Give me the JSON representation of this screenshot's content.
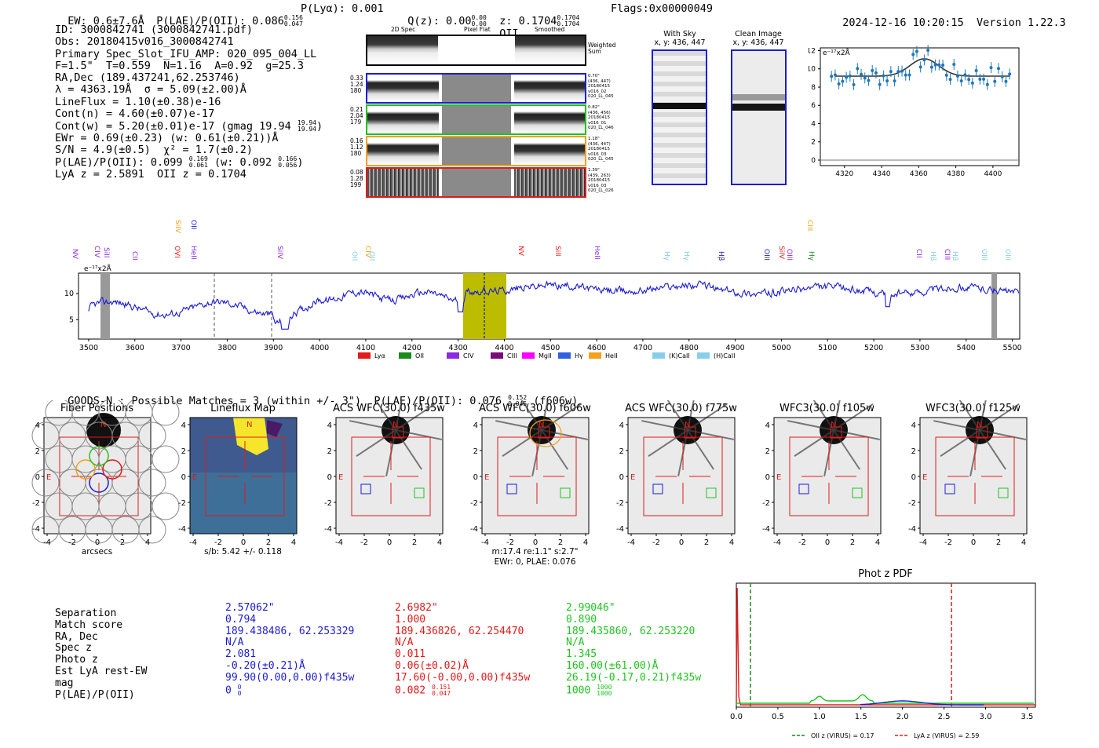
{
  "header": {
    "ew": "EW: 0.6±7.6Å",
    "plae_label": "P(LAE)/P(OII): 0.086",
    "plae_hi": "0.156",
    "plae_lo": "0.047",
    "plya": "P(Lyα): 0.001",
    "qz_label": "Q(z): 0.00",
    "qz_hi": "0.00",
    "qz_lo": "0.00",
    "z_label": "z: 0.1704",
    "z_hi": "0.1704",
    "z_lo": "0.1704",
    "z_line": "OII",
    "flags": "Flags:0x00000049",
    "datetime": "2024-12-16 10:20:15",
    "version": "Version 1.22.3"
  },
  "info": {
    "l1": "ID: 3000842741 (3000842741.pdf)",
    "l2": "Obs: 20180415v016_3000842741",
    "l3": "Primary Spec_Slot_IFU_AMP: 020_095_004_LL",
    "l4": "F=1.5\"  T=0.559  N=1.16  A=0.92  g=25.3",
    "l5": "RA,Dec (189.437241,62.253746)",
    "l6": "λ = 4363.19Å  σ = 5.09(±2.00)Å",
    "l7": "LineFlux = 1.10(±0.38)e-16",
    "l8": "Cont(n) = 4.60(±0.07)e-17",
    "l9_label": "Cont(w) = 5.20(±0.01)e-17 (gmag 19.94",
    "l9_hi": "19.94",
    "l9_lo": "19.94",
    "l9_end": ")",
    "l10": "EWr = 0.69(±0.23) (w: 0.61(±0.21))Å",
    "l11": "S/N = 4.9(±0.5)  χ² = 1.7(±0.2)",
    "l12_a": "P(LAE)/P(OII): 0.099",
    "l12_hi1": "0.169",
    "l12_lo1": "0.061",
    "l12_b": "(w: 0.092",
    "l12_hi2": "0.166",
    "l12_lo2": "0.056",
    "l12_c": ")",
    "l13": "LyA z = 2.5891  OII z = 0.1704"
  },
  "spec2d": {
    "col_2d": "2D Spec",
    "col_flat": "Pixel Flat",
    "col_smooth": "Smoothed",
    "weighted": "Weighted",
    "sum": "Sum",
    "rows": [
      {
        "left": [
          "0.33",
          "1.24",
          "180"
        ],
        "right": [
          "0.70\"",
          "(436, 447)",
          "20180415",
          "v016_02",
          "020_LL_045"
        ],
        "color": "#1b1bd6"
      },
      {
        "left": [
          "0.21",
          "2.04",
          "179"
        ],
        "right": [
          "0.82\"",
          "(436, 456)",
          "20180415",
          "v016_01",
          "020_LL_046"
        ],
        "color": "#1fc41f"
      },
      {
        "left": [
          "0.16",
          "1.12",
          "180"
        ],
        "right": [
          "1.18\"",
          "(436, 447)",
          "20180415",
          "v016_03",
          "020_LL_045"
        ],
        "color": "#f5a11b"
      },
      {
        "left": [
          "0.08",
          "1.28",
          "199"
        ],
        "right": [
          "1.39\"",
          "(439, 263)",
          "20180415",
          "v016_03",
          "020_LL_026"
        ],
        "color": "#e31a1a"
      }
    ]
  },
  "cutouts": {
    "sky_title": "With Sky",
    "sky_xy": "x, y: 436, 447",
    "clean_title": "Clean Image",
    "clean_xy": "x, y: 436, 447"
  },
  "fit_plot": {
    "exp_label": "e⁻¹⁷x2Å",
    "yticks": [
      "0",
      "2",
      "4",
      "6",
      "8",
      "10",
      "12"
    ],
    "xticks": [
      "4320",
      "4340",
      "4360",
      "4380",
      "4400"
    ]
  },
  "full_spectrum": {
    "exp_label": "e⁻¹⁷x2Å",
    "yticks": [
      "5",
      "10"
    ],
    "xticks": [
      "3500",
      "3600",
      "3700",
      "3800",
      "3900",
      "4000",
      "4100",
      "4200",
      "4300",
      "4400",
      "4500",
      "4600",
      "4700",
      "4800",
      "4900",
      "5000",
      "5100",
      "5200",
      "5300",
      "5400",
      "5500"
    ],
    "line_labels": [
      {
        "t": "NV",
        "c": "#8a2be2"
      },
      {
        "t": "CIV",
        "c": "#8a2be2"
      },
      {
        "t": "SiII",
        "c": "#8a2be2"
      },
      {
        "t": "CII",
        "c": "#8a2be2"
      },
      {
        "t": "OVI",
        "c": "#e31a1a"
      },
      {
        "t": "SiIV",
        "c": "#f5a11b"
      },
      {
        "t": "HeII",
        "c": "#8a2be2"
      },
      {
        "t": "OII",
        "c": "#1b1bd6"
      },
      {
        "t": "SiIV",
        "c": "#8a2be2"
      },
      {
        "t": "OII",
        "c": "#87ceeb"
      },
      {
        "t": "CIV",
        "c": "#f5a11b"
      },
      {
        "t": "OII",
        "c": "#87ceeb"
      },
      {
        "t": "NV",
        "c": "#e31a1a"
      },
      {
        "t": "SiII",
        "c": "#e31a1a"
      },
      {
        "t": "HeII",
        "c": "#8a2be2"
      },
      {
        "t": "Hγ",
        "c": "#87ceeb"
      },
      {
        "t": "Hγ",
        "c": "#87ceeb"
      },
      {
        "t": "Hβ",
        "c": "#1b1bd6"
      },
      {
        "t": "OIII",
        "c": "#1b1bd6"
      },
      {
        "t": "SiIV",
        "c": "#e31a1a"
      },
      {
        "t": "OIII",
        "c": "#8a2be2"
      },
      {
        "t": "Hγ",
        "c": "#228b22"
      },
      {
        "t": "CIII",
        "c": "#f5a11b"
      },
      {
        "t": "CII",
        "c": "#8a2be2"
      },
      {
        "t": "Hβ",
        "c": "#87ceeb"
      },
      {
        "t": "CIII",
        "c": "#8a2be2"
      },
      {
        "t": "Hβ",
        "c": "#87ceeb"
      },
      {
        "t": "OIII",
        "c": "#87ceeb"
      },
      {
        "t": "OIII",
        "c": "#87ceeb"
      }
    ],
    "legend": [
      {
        "t": "Lyα",
        "c": "#e31a1a"
      },
      {
        "t": "OII",
        "c": "#1a8a1a"
      },
      {
        "t": "CIV",
        "c": "#8a2be2"
      },
      {
        "t": "CIII",
        "c": "#7a0a7a"
      },
      {
        "t": "MgII",
        "c": "#ff00ff"
      },
      {
        "t": "Hγ",
        "c": "#3060e0"
      },
      {
        "t": "HeII",
        "c": "#f5a11b"
      },
      {
        "t": "(K)CaII",
        "c": "#87ceeb"
      },
      {
        "t": "(H)CaII",
        "c": "#87ceeb"
      }
    ]
  },
  "goods": {
    "label": "GOODS-N : Possible Matches = 3 (within +/- 3\")  P(LAE)/P(OII): 0.076",
    "hi": "0.152",
    "lo": "0.045",
    "end": "(f606w)"
  },
  "thumbs": [
    {
      "title": "Fiber Positions",
      "caption": "arcsecs"
    },
    {
      "title": "Lineflux Map",
      "caption": "s/b: 5.42 +/- 0.118"
    },
    {
      "title": "ACS WFC(30.0) f435w",
      "caption": ""
    },
    {
      "title": "ACS WFC(30.0) f606w",
      "caption": "m:17.4  re:1.1\"  s:2.7\"",
      "caption2": "EWr: 0, PLAE: 0.076"
    },
    {
      "title": "ACS WFC(30.0) f775w",
      "caption": ""
    },
    {
      "title": "WFC3(30.0) f105w",
      "caption": ""
    },
    {
      "title": "WFC3(30.0) f125w",
      "caption": ""
    }
  ],
  "thumb_ticks": {
    "x": [
      "-4",
      "-2",
      "0",
      "2",
      "4"
    ],
    "y": [
      "4",
      "2",
      "0",
      "-2",
      "-4"
    ],
    "n": "N",
    "e": "E"
  },
  "table": {
    "labels": [
      "Separation",
      "Match score",
      "RA, Dec",
      "Spec z",
      "Photo z",
      "Est LyA rest-EW",
      "mag",
      "P(LAE)/P(OII)"
    ],
    "cols": [
      {
        "color": "#1b1bd6",
        "vals": [
          "2.57062\"",
          "0.794",
          "189.438486, 62.253329",
          "N/A",
          "2.081",
          "-0.20(±0.21)Å",
          "99.90(0.00,0.00)f435w"
        ],
        "plae": "0",
        "hi": "0",
        "lo": "0"
      },
      {
        "color": "#e31a1a",
        "vals": [
          "2.6982\"",
          "1.000",
          "189.436826, 62.254470",
          "N/A",
          "0.011",
          "0.06(±0.02)Å",
          "17.60(-0.00,0.00)f435w"
        ],
        "plae": "0.082",
        "hi": "0.151",
        "lo": "0.047"
      },
      {
        "color": "#1fc41f",
        "vals": [
          "2.99046\"",
          "0.890",
          "189.435860, 62.253220",
          "N/A",
          "1.345",
          "160.00(±61.00)Å",
          "26.19(-0.17,0.21)f435w"
        ],
        "plae": "1000",
        "hi": "1000",
        "lo": "1000"
      }
    ]
  },
  "photz": {
    "title": "Phot z PDF",
    "xticks": [
      "0.0",
      "0.5",
      "1.0",
      "1.5",
      "2.0",
      "2.5",
      "3.0",
      "3.5"
    ],
    "legend_oii": "OII z (VIRUS) = 0.17",
    "legend_lya": "LyA z (VIRUS) = 2.59"
  }
}
